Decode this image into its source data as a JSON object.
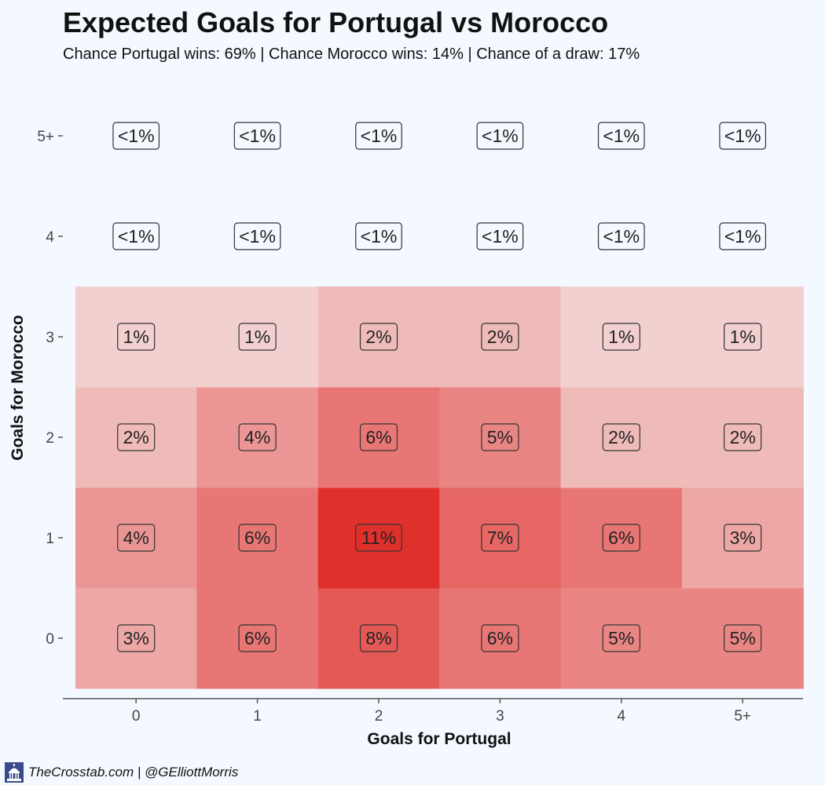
{
  "chart_data": {
    "type": "heatmap",
    "title": "Expected Goals for Portugal vs Morocco",
    "subtitle": "Chance Portugal wins: 69% | Chance Morocco wins: 14% | Chance of a draw: 17%",
    "xlabel": "Goals for Portugal",
    "ylabel": "Goals for Morocco",
    "x_categories": [
      "0",
      "1",
      "2",
      "3",
      "4",
      "5+"
    ],
    "y_categories": [
      "0",
      "1",
      "2",
      "3",
      "4",
      "5+"
    ],
    "color_low": "#f5f0f0",
    "color_high": "#e0302c",
    "value_max": 11,
    "cells": [
      {
        "x": "0",
        "y": "0",
        "value": 3,
        "label": "3%"
      },
      {
        "x": "1",
        "y": "0",
        "value": 6,
        "label": "6%"
      },
      {
        "x": "2",
        "y": "0",
        "value": 8,
        "label": "8%"
      },
      {
        "x": "3",
        "y": "0",
        "value": 6,
        "label": "6%"
      },
      {
        "x": "4",
        "y": "0",
        "value": 5,
        "label": "5%"
      },
      {
        "x": "5+",
        "y": "0",
        "value": 5,
        "label": "5%"
      },
      {
        "x": "0",
        "y": "1",
        "value": 4,
        "label": "4%"
      },
      {
        "x": "1",
        "y": "1",
        "value": 6,
        "label": "6%"
      },
      {
        "x": "2",
        "y": "1",
        "value": 11,
        "label": "11%"
      },
      {
        "x": "3",
        "y": "1",
        "value": 7,
        "label": "7%"
      },
      {
        "x": "4",
        "y": "1",
        "value": 6,
        "label": "6%"
      },
      {
        "x": "5+",
        "y": "1",
        "value": 3,
        "label": "3%"
      },
      {
        "x": "0",
        "y": "2",
        "value": 2,
        "label": "2%"
      },
      {
        "x": "1",
        "y": "2",
        "value": 4,
        "label": "4%"
      },
      {
        "x": "2",
        "y": "2",
        "value": 6,
        "label": "6%"
      },
      {
        "x": "3",
        "y": "2",
        "value": 5,
        "label": "5%"
      },
      {
        "x": "4",
        "y": "2",
        "value": 2,
        "label": "2%"
      },
      {
        "x": "5+",
        "y": "2",
        "value": 2,
        "label": "2%"
      },
      {
        "x": "0",
        "y": "3",
        "value": 1,
        "label": "1%"
      },
      {
        "x": "1",
        "y": "3",
        "value": 1,
        "label": "1%"
      },
      {
        "x": "2",
        "y": "3",
        "value": 2,
        "label": "2%"
      },
      {
        "x": "3",
        "y": "3",
        "value": 2,
        "label": "2%"
      },
      {
        "x": "4",
        "y": "3",
        "value": 1,
        "label": "1%"
      },
      {
        "x": "5+",
        "y": "3",
        "value": 1,
        "label": "1%"
      },
      {
        "x": "0",
        "y": "4",
        "value": 0,
        "label": "<1%"
      },
      {
        "x": "1",
        "y": "4",
        "value": 0,
        "label": "<1%"
      },
      {
        "x": "2",
        "y": "4",
        "value": 0,
        "label": "<1%"
      },
      {
        "x": "3",
        "y": "4",
        "value": 0,
        "label": "<1%"
      },
      {
        "x": "4",
        "y": "4",
        "value": 0,
        "label": "<1%"
      },
      {
        "x": "5+",
        "y": "4",
        "value": 0,
        "label": "<1%"
      },
      {
        "x": "0",
        "y": "5+",
        "value": 0,
        "label": "<1%"
      },
      {
        "x": "1",
        "y": "5+",
        "value": 0,
        "label": "<1%"
      },
      {
        "x": "2",
        "y": "5+",
        "value": 0,
        "label": "<1%"
      },
      {
        "x": "3",
        "y": "5+",
        "value": 0,
        "label": "<1%"
      },
      {
        "x": "4",
        "y": "5+",
        "value": 0,
        "label": "<1%"
      },
      {
        "x": "5+",
        "y": "5+",
        "value": 0,
        "label": "<1%"
      }
    ]
  },
  "footer": {
    "text": "TheCrosstab.com | @GElliottMorris",
    "logo_icon": "capitol-building-icon"
  }
}
